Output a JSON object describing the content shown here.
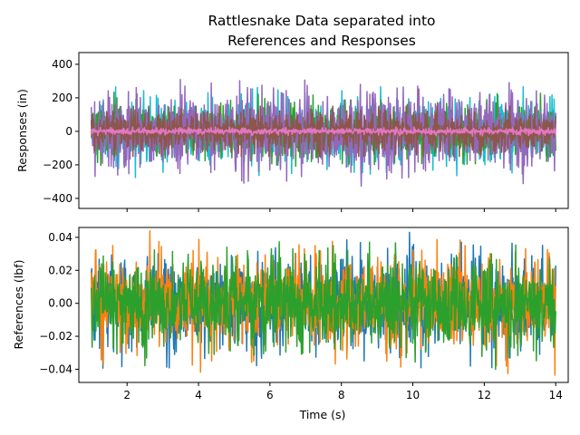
{
  "figure": {
    "title_lines": [
      "Rattlesnake Data separated into",
      "References and Responses"
    ]
  },
  "chart_data": [
    {
      "type": "line",
      "ylabel": "Responses (in)",
      "xlabel": "",
      "xlim": [
        0.65,
        14.35
      ],
      "ylim": [
        -460,
        470
      ],
      "x_range": [
        1,
        14
      ],
      "xticks": [
        2,
        4,
        6,
        8,
        10,
        12,
        14
      ],
      "xtick_labels_shown": false,
      "yticks": [
        -400,
        -200,
        0,
        200,
        400
      ],
      "ytick_labels": [
        "−400",
        "−200",
        "0",
        "200",
        "400"
      ],
      "series": [
        {
          "color": "#17becf",
          "typical_amplitude": 140,
          "peak_amplitude": 330
        },
        {
          "color": "#2ca02c",
          "typical_amplitude": 120,
          "peak_amplitude": 280
        },
        {
          "color": "#9467bd",
          "typical_amplitude": 165,
          "peak_amplitude": 420
        },
        {
          "color": "#8c564b",
          "typical_amplitude": 90,
          "peak_amplitude": 150
        },
        {
          "color": "#e377c2",
          "typical_amplitude": 14,
          "peak_amplitude": 35
        }
      ]
    },
    {
      "type": "line",
      "ylabel": "References (lbf)",
      "xlabel": "Time (s)",
      "xlim": [
        0.65,
        14.35
      ],
      "ylim": [
        -0.048,
        0.046
      ],
      "x_range": [
        1,
        14
      ],
      "xticks": [
        2,
        4,
        6,
        8,
        10,
        12,
        14
      ],
      "xtick_labels": [
        "2",
        "4",
        "6",
        "8",
        "10",
        "12",
        "14"
      ],
      "yticks": [
        -0.04,
        -0.02,
        0.0,
        0.02,
        0.04
      ],
      "ytick_labels": [
        "−0.04",
        "−0.02",
        "0.00",
        "0.02",
        "0.04"
      ],
      "series": [
        {
          "color": "#1f77b4",
          "typical_amplitude": 0.021,
          "peak_amplitude": 0.047
        },
        {
          "color": "#ff7f0e",
          "typical_amplitude": 0.021,
          "peak_amplitude": 0.044
        },
        {
          "color": "#2ca02c",
          "typical_amplitude": 0.02,
          "peak_amplitude": 0.04
        }
      ]
    }
  ]
}
